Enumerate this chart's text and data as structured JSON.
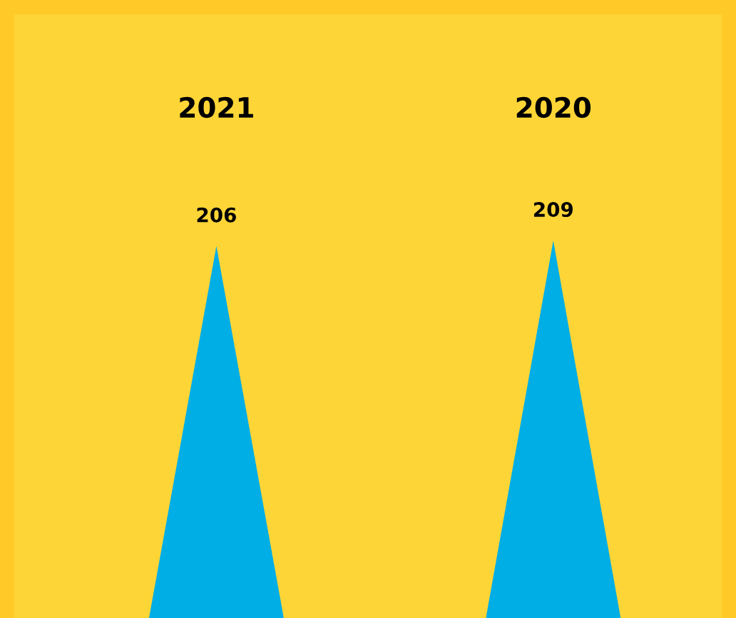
{
  "chart_data": {
    "type": "bar",
    "categories": [
      "2021",
      "2020"
    ],
    "values": [
      206,
      209
    ],
    "color": "#00aee6",
    "data_labels": true
  }
}
